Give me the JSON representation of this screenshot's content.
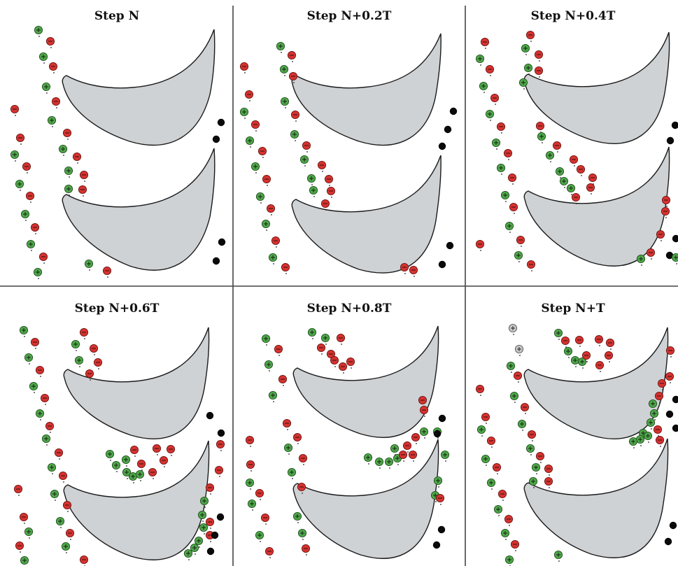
{
  "figure": {
    "panels": [
      {
        "title": "Step N"
      },
      {
        "title": "Step N+0.2T"
      },
      {
        "title": "Step N+0.4T"
      },
      {
        "title": "Step N+0.6T"
      },
      {
        "title": "Step N+0.8T"
      },
      {
        "title": "Step N+T"
      }
    ]
  },
  "colors": {
    "positive_vortex": "#4fa84a",
    "negative_vortex": "#d6322f",
    "particle": "#0a0a0a",
    "blade_fill": "#cfd2d4"
  },
  "legend_semantics": {
    "green_circle": "plus-sign vortex",
    "red_circle": "minus-sign vortex",
    "black_circle": "particle"
  }
}
